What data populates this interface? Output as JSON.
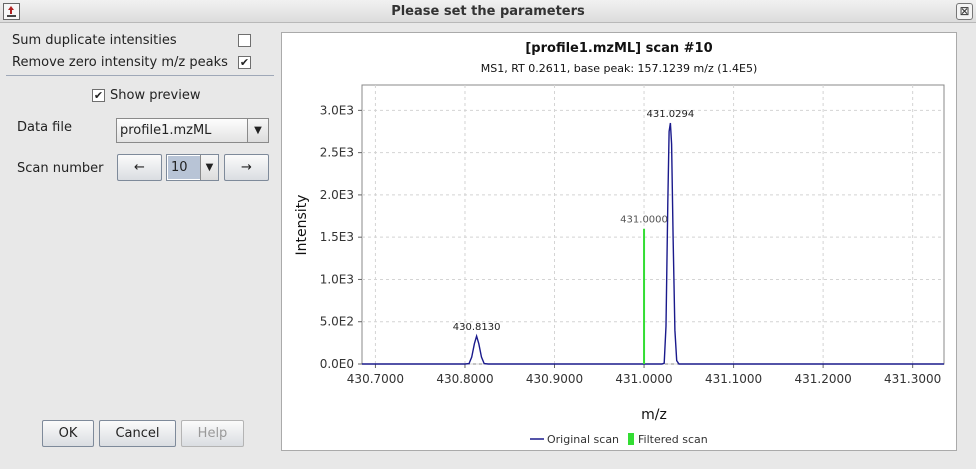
{
  "window": {
    "title": "Please set the parameters",
    "close_glyph": "⊠",
    "app_icon": "app-icon"
  },
  "options": {
    "sum_duplicate_label": "Sum duplicate intensities",
    "sum_duplicate_checked": false,
    "remove_zero_label": "Remove zero intensity m/z peaks",
    "remove_zero_checked": true,
    "show_preview_label": "Show preview",
    "show_preview_checked": true
  },
  "data_file": {
    "label": "Data file",
    "value": "profile1.mzML"
  },
  "scan": {
    "label": "Scan number",
    "prev": "←",
    "value": "10",
    "next": "→"
  },
  "buttons": {
    "ok": "OK",
    "cancel": "Cancel",
    "help": "Help"
  },
  "chart_data": {
    "type": "line",
    "title": "[profile1.mzML] scan #10",
    "subtitle": "MS1, RT 0.2611, base peak: 157.1239 m/z (1.4E5)",
    "xlabel": "m/z",
    "ylabel": "Intensity",
    "xlim": [
      430.685,
      431.335
    ],
    "ylim": [
      0,
      3300
    ],
    "x_ticks": [
      "430.7000",
      "430.8000",
      "430.9000",
      "431.0000",
      "431.1000",
      "431.2000",
      "431.3000"
    ],
    "x_tick_values": [
      430.7,
      430.8,
      430.9,
      431.0,
      431.1,
      431.2,
      431.3
    ],
    "y_ticks": [
      "0.0E0",
      "5.0E2",
      "1.0E3",
      "1.5E3",
      "2.0E3",
      "2.5E3",
      "3.0E3"
    ],
    "y_tick_values": [
      0,
      500,
      1000,
      1500,
      2000,
      2500,
      3000
    ],
    "grid": true,
    "legend_position": "bottom",
    "series": [
      {
        "name": "Original scan",
        "color": "#1a1a8c",
        "style": "line",
        "x": [
          430.685,
          430.8,
          430.8045,
          430.8075,
          430.8105,
          430.813,
          430.8155,
          430.8185,
          430.8215,
          430.826,
          431.02,
          431.0225,
          431.0245,
          431.0265,
          431.028,
          431.0294,
          431.0308,
          431.0325,
          431.0345,
          431.0365,
          431.039,
          431.335
        ],
        "y": [
          0,
          0,
          5,
          80,
          240,
          330,
          240,
          80,
          5,
          0,
          0,
          10,
          450,
          1900,
          2750,
          2850,
          2600,
          1500,
          400,
          40,
          0,
          0
        ]
      },
      {
        "name": "Filtered scan",
        "color": "#33dd33",
        "style": "stick",
        "x": [
          431.0
        ],
        "y": [
          1600
        ]
      }
    ],
    "annotations": [
      {
        "text": "430.8130",
        "x": 430.813,
        "y": 330,
        "color": "#222222"
      },
      {
        "text": "431.0294",
        "x": 431.0294,
        "y": 2850,
        "color": "#222222"
      },
      {
        "text": "431.0000",
        "x": 431.0,
        "y": 1600,
        "color": "#555555"
      }
    ]
  }
}
